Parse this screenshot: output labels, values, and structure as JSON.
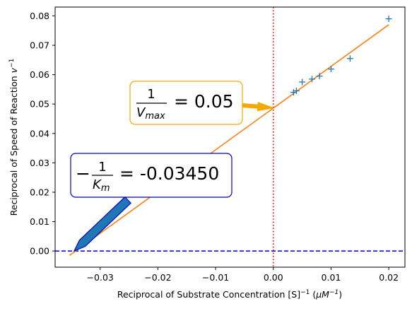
{
  "chart_data": {
    "type": "scatter",
    "xlabel": "Reciprocal of Substrate Concentration [S]⁻¹ (μM⁻¹)",
    "xlabel_parts": {
      "main": "Reciprocal of Substrate Concentration [S]",
      "sup1": "−1",
      "open": " (",
      "mu": "μM",
      "sup2": "−1",
      "close": ")"
    },
    "ylabel": "Reciprocal of Speed of Reaction v⁻¹",
    "ylabel_parts": {
      "main": "Reciprocal of Speed of Reaction ",
      "v": "v",
      "sup": "−1"
    },
    "xlim": [
      -0.0378,
      0.0228
    ],
    "ylim": [
      -0.0055,
      0.083
    ],
    "xticks": [
      -0.03,
      -0.02,
      -0.01,
      0.0,
      0.01,
      0.02
    ],
    "xtick_labels": [
      "−0.03",
      "−0.02",
      "−0.01",
      "0.00",
      "0.01",
      "0.02"
    ],
    "yticks": [
      0.0,
      0.01,
      0.02,
      0.03,
      0.04,
      0.05,
      0.06,
      0.07,
      0.08
    ],
    "ytick_labels": [
      "0.00",
      "0.01",
      "0.02",
      "0.03",
      "0.04",
      "0.05",
      "0.06",
      "0.07",
      "0.08"
    ],
    "grid": false,
    "points": {
      "marker": "+",
      "color": "#1f77b4",
      "x": [
        0.02,
        0.0133,
        0.01,
        0.008,
        0.0067,
        0.005,
        0.004,
        0.0035
      ],
      "y": [
        0.079,
        0.0655,
        0.0619,
        0.0595,
        0.0585,
        0.0575,
        0.0545,
        0.054
      ]
    },
    "fit_line": {
      "color": "#ff7f0e",
      "x": [
        -0.0353,
        0.02
      ],
      "y": [
        -0.0015,
        0.077
      ]
    },
    "vline": {
      "x": 0.0,
      "color": "#ff0000",
      "style": "dotted"
    },
    "hline": {
      "y": 0.0,
      "color": "#0000cc",
      "style": "dashed"
    },
    "annotations": [
      {
        "id": "vmax",
        "text_prefix": "",
        "numerator": "1",
        "denominator": "V",
        "denominator_sub": "max",
        "text_value": " = 0.05",
        "box_color": "#f5a800",
        "arrow_color": "#f5a800",
        "target": [
          0.0,
          0.0487
        ]
      },
      {
        "id": "km",
        "text_prefix": "−",
        "numerator": "1",
        "denominator": "K",
        "denominator_sub": "m",
        "text_value": " = -0.03450",
        "box_color": "#0000cc",
        "arrow_color": "#1f77b4",
        "arrow_edge": "#0000cc",
        "target": [
          -0.0345,
          0.0
        ]
      }
    ]
  }
}
